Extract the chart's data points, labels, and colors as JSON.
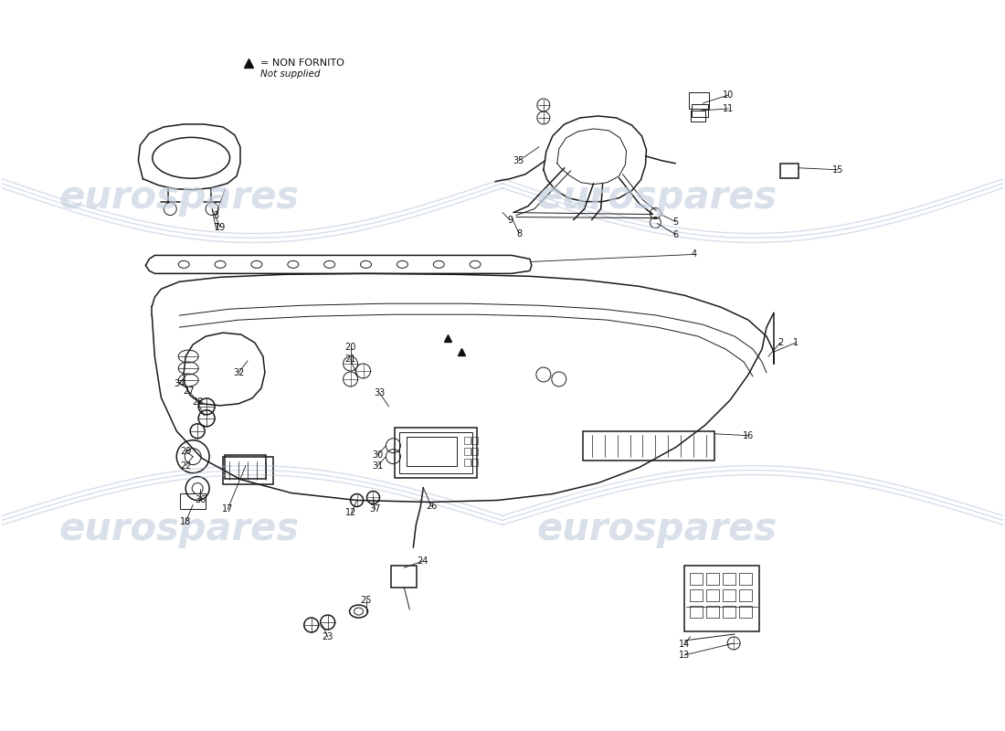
{
  "bg_color": "#ffffff",
  "line_color": "#1a1a1a",
  "watermark_color": "#c5d0e0",
  "watermark_text": "eurospares",
  "legend_text1": "= NON FORNITO",
  "legend_text2": "Not supplied",
  "swoosh_color": "#b0c0d8"
}
